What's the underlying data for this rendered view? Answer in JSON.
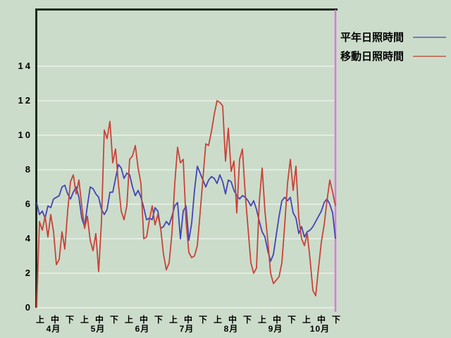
{
  "app": {
    "background_color": "#ccdcca",
    "plot_border_color": "#1c2b1c",
    "gridline_color": "#eaf2ea"
  },
  "legend": {
    "items": [
      {
        "label": "平年日照時間",
        "color": "#6e7ec2"
      },
      {
        "label": "移動日照時間",
        "color": "#c27a68"
      }
    ]
  },
  "chart_data": {
    "type": "line",
    "title": "",
    "xlabel": "",
    "ylabel": "",
    "ylim": [
      0,
      17.3
    ],
    "y_ticks": [
      0,
      2,
      4,
      6,
      8,
      10,
      12,
      14
    ],
    "grid": true,
    "legend_position": "outside-top-right",
    "x_axis": {
      "months": [
        "4月",
        "5月",
        "6月",
        "7月",
        "8月",
        "9月",
        "10月"
      ],
      "period_labels": [
        "上",
        "中",
        "下"
      ]
    },
    "right_marker_line": {
      "color": "#dd77dd"
    },
    "series": [
      {
        "name": "平年日照時間",
        "color": "#4343b6",
        "values": [
          6.1,
          5.4,
          5.6,
          5.2,
          5.9,
          5.8,
          6.3,
          6.4,
          6.5,
          7.0,
          7.1,
          6.6,
          6.3,
          6.7,
          7.0,
          6.4,
          5.2,
          4.7,
          5.9,
          7.0,
          6.9,
          6.6,
          6.4,
          5.7,
          5.4,
          5.7,
          6.7,
          6.7,
          7.5,
          8.3,
          8.1,
          7.5,
          7.8,
          7.7,
          7.0,
          6.5,
          6.8,
          6.4,
          5.8,
          5.1,
          5.2,
          5.1,
          5.8,
          5.6,
          4.6,
          4.7,
          5.0,
          4.8,
          5.3,
          5.9,
          6.1,
          4.0,
          5.6,
          5.9,
          3.9,
          4.9,
          6.8,
          8.2,
          7.8,
          7.4,
          7.0,
          7.4,
          7.6,
          7.5,
          7.2,
          7.7,
          7.3,
          6.6,
          7.4,
          7.3,
          6.8,
          6.5,
          6.3,
          6.5,
          6.4,
          6.2,
          5.9,
          6.2,
          5.7,
          5.0,
          4.4,
          4.1,
          3.3,
          2.7,
          3.1,
          4.2,
          5.3,
          6.2,
          6.4,
          6.2,
          6.4,
          5.5,
          5.2,
          4.3,
          4.7,
          4.1,
          4.4,
          4.5,
          4.7,
          5.0,
          5.3,
          5.6,
          6.1,
          6.3,
          6.0,
          5.5,
          4.0
        ]
      },
      {
        "name": "移動日照時間",
        "color": "#c84338",
        "values": [
          0.0,
          5.0,
          4.5,
          5.3,
          4.1,
          5.4,
          4.4,
          2.5,
          2.8,
          4.4,
          3.4,
          5.6,
          7.3,
          7.7,
          6.6,
          7.4,
          5.9,
          4.6,
          5.3,
          3.9,
          3.3,
          4.3,
          2.1,
          5.0,
          10.3,
          9.8,
          10.8,
          8.4,
          9.2,
          7.2,
          5.6,
          5.1,
          5.9,
          8.6,
          8.8,
          9.4,
          8.1,
          7.2,
          4.0,
          4.1,
          5.1,
          5.9,
          4.8,
          5.4,
          4.6,
          3.1,
          2.2,
          2.6,
          4.3,
          7.2,
          9.3,
          8.4,
          8.6,
          5.0,
          3.2,
          2.9,
          3.0,
          3.6,
          5.5,
          7.5,
          9.5,
          9.4,
          10.2,
          11.2,
          12.0,
          11.9,
          11.7,
          8.5,
          10.4,
          7.9,
          8.5,
          5.5,
          8.6,
          9.2,
          6.6,
          4.6,
          2.6,
          2.0,
          2.3,
          6.2,
          8.1,
          5.6,
          3.9,
          2.0,
          1.4,
          1.6,
          1.8,
          2.6,
          4.8,
          7.2,
          8.6,
          6.8,
          8.2,
          5.2,
          4.0,
          3.6,
          4.3,
          2.8,
          1.0,
          0.7,
          2.3,
          3.8,
          4.8,
          6.2,
          7.4,
          6.7,
          5.9
        ]
      }
    ]
  }
}
